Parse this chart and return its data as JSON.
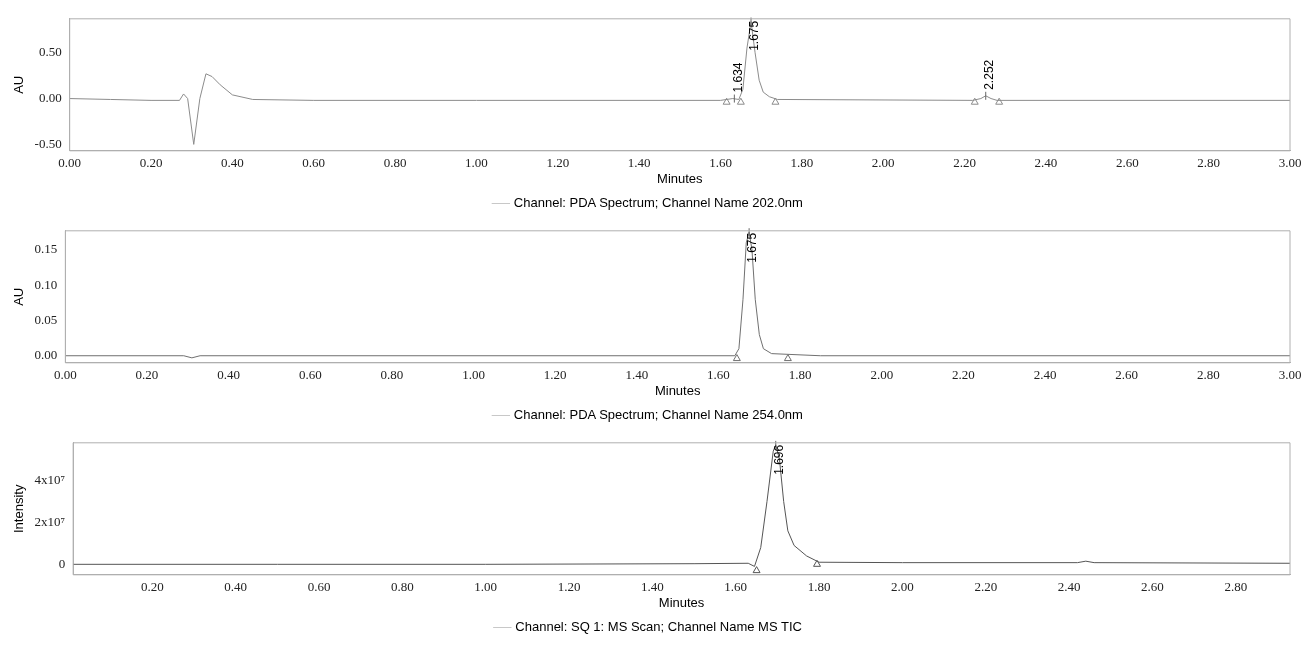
{
  "chart_data": [
    {
      "type": "line",
      "xlabel": "Minutes",
      "ylabel": "AU",
      "legend": "bottom",
      "xlim": [
        0,
        3
      ],
      "ylim": [
        -0.57,
        0.87
      ],
      "xticks": [
        {
          "value": 0,
          "label": "0.00"
        },
        {
          "value": 0.2,
          "label": "0.20"
        },
        {
          "value": 0.4,
          "label": "0.40"
        },
        {
          "value": 0.6,
          "label": "0.60"
        },
        {
          "value": 0.8,
          "label": "0.80"
        },
        {
          "value": 1,
          "label": "1.00"
        },
        {
          "value": 1.2,
          "label": "1.20"
        },
        {
          "value": 1.4,
          "label": "1.40"
        },
        {
          "value": 1.6,
          "label": "1.60"
        },
        {
          "value": 1.8,
          "label": "1.80"
        },
        {
          "value": 2,
          "label": "2.00"
        },
        {
          "value": 2.2,
          "label": "2.20"
        },
        {
          "value": 2.4,
          "label": "2.40"
        },
        {
          "value": 2.6,
          "label": "2.60"
        },
        {
          "value": 2.8,
          "label": "2.80"
        },
        {
          "value": 3,
          "label": "3.00"
        }
      ],
      "yticks": [
        {
          "value": -0.5,
          "label": "-0.50"
        },
        {
          "value": 0,
          "label": "0.00"
        },
        {
          "value": 0.5,
          "label": "0.50"
        }
      ],
      "series": [
        {
          "name": "Channel: PDA Spectrum; Channel Name 202.0nm",
          "color": "#8c8c8c",
          "x": [
            0,
            0.1,
            0.2,
            0.27,
            0.28,
            0.29,
            0.305,
            0.32,
            0.335,
            0.35,
            0.37,
            0.4,
            0.45,
            0.6,
            1.0,
            1.6,
            1.63,
            1.645,
            1.655,
            1.665,
            1.675,
            1.685,
            1.695,
            1.705,
            1.72,
            1.74,
            2.22,
            2.24,
            2.252,
            2.265,
            2.28,
            3.0
          ],
          "values": [
            0,
            -0.01,
            -0.02,
            -0.02,
            0.05,
            0,
            -0.5,
            0,
            0.27,
            0.24,
            0.15,
            0.04,
            -0.01,
            -0.02,
            -0.02,
            -0.02,
            0,
            -0.01,
            0.1,
            0.55,
            0.84,
            0.5,
            0.2,
            0.07,
            0.02,
            -0.01,
            -0.02,
            0,
            0.03,
            0,
            -0.02,
            -0.02
          ]
        },
        {
          "type": "scatter",
          "marker": "triangle",
          "color": "#8c8c8c",
          "x": [
            1.615,
            1.65,
            1.735,
            2.225,
            2.285
          ],
          "values": [
            -0.04,
            -0.04,
            -0.04,
            -0.04,
            -0.04
          ]
        }
      ],
      "annotations": [
        {
          "text": "1.634",
          "x": 1.634,
          "y": 0
        },
        {
          "text": "1.675",
          "x": 1.675,
          "y": 0.84
        },
        {
          "text": "2.252",
          "x": 2.252,
          "y": 0.03
        }
      ]
    },
    {
      "type": "line",
      "xlabel": "Minutes",
      "ylabel": "AU",
      "legend": "bottom",
      "xlim": [
        0,
        3
      ],
      "ylim": [
        -0.01,
        0.177
      ],
      "xticks": [
        {
          "value": 0,
          "label": "0.00"
        },
        {
          "value": 0.2,
          "label": "0.20"
        },
        {
          "value": 0.4,
          "label": "0.40"
        },
        {
          "value": 0.6,
          "label": "0.60"
        },
        {
          "value": 0.8,
          "label": "0.80"
        },
        {
          "value": 1,
          "label": "1.00"
        },
        {
          "value": 1.2,
          "label": "1.20"
        },
        {
          "value": 1.4,
          "label": "1.40"
        },
        {
          "value": 1.6,
          "label": "1.60"
        },
        {
          "value": 1.8,
          "label": "1.80"
        },
        {
          "value": 2,
          "label": "2.00"
        },
        {
          "value": 2.2,
          "label": "2.20"
        },
        {
          "value": 2.4,
          "label": "2.40"
        },
        {
          "value": 2.6,
          "label": "2.60"
        },
        {
          "value": 2.8,
          "label": "2.80"
        },
        {
          "value": 3,
          "label": "3.00"
        }
      ],
      "yticks": [
        {
          "value": 0,
          "label": "0.00"
        },
        {
          "value": 0.05,
          "label": "0.05"
        },
        {
          "value": 0.1,
          "label": "0.10"
        },
        {
          "value": 0.15,
          "label": "0.15"
        }
      ],
      "series": [
        {
          "name": "Channel: PDA Spectrum; Channel Name 254.0nm",
          "color": "#707070",
          "x": [
            0,
            0.29,
            0.31,
            0.33,
            1.64,
            1.65,
            1.66,
            1.668,
            1.675,
            1.682,
            1.69,
            1.7,
            1.71,
            1.73,
            1.77,
            1.85,
            3.0
          ],
          "values": [
            0,
            0,
            -0.003,
            0,
            0,
            0.01,
            0.08,
            0.16,
            0.175,
            0.15,
            0.08,
            0.03,
            0.01,
            0.003,
            0.002,
            0,
            0
          ]
        },
        {
          "type": "scatter",
          "marker": "triangle",
          "color": "#707070",
          "x": [
            1.645,
            1.77
          ],
          "values": [
            -0.004,
            -0.004
          ]
        }
      ],
      "annotations": [
        {
          "text": "1.675",
          "x": 1.675,
          "y": 0.175
        }
      ]
    },
    {
      "type": "line",
      "xlabel": "Minutes",
      "ylabel": "Intensity",
      "legend": "bottom",
      "xlim": [
        0.01,
        2.93
      ],
      "ylim": [
        -5000000,
        58000000
      ],
      "xticks": [
        {
          "value": 0.2,
          "label": "0.20"
        },
        {
          "value": 0.4,
          "label": "0.40"
        },
        {
          "value": 0.6,
          "label": "0.60"
        },
        {
          "value": 0.8,
          "label": "0.80"
        },
        {
          "value": 1,
          "label": "1.00"
        },
        {
          "value": 1.2,
          "label": "1.20"
        },
        {
          "value": 1.4,
          "label": "1.40"
        },
        {
          "value": 1.6,
          "label": "1.60"
        },
        {
          "value": 1.8,
          "label": "1.80"
        },
        {
          "value": 2,
          "label": "2.00"
        },
        {
          "value": 2.2,
          "label": "2.20"
        },
        {
          "value": 2.4,
          "label": "2.40"
        },
        {
          "value": 2.6,
          "label": "2.60"
        },
        {
          "value": 2.8,
          "label": "2.80"
        }
      ],
      "yticks": [
        0,
        {
          "value": 20000000,
          "label": "2x10⁷"
        },
        {
          "value": 40000000,
          "label": "4x10⁷"
        }
      ],
      "series": [
        {
          "name": "Channel: SQ 1: MS Scan; Channel Name MS TIC",
          "color": "#555555",
          "x": [
            0.01,
            0.5,
            1.0,
            1.5,
            1.63,
            1.645,
            1.66,
            1.675,
            1.69,
            1.696,
            1.705,
            1.715,
            1.725,
            1.74,
            1.77,
            1.8,
            2.0,
            2.42,
            2.44,
            2.46,
            2.93
          ],
          "values": [
            0,
            0,
            0,
            300000,
            500000,
            -1000000,
            8000000,
            30000000,
            54000000,
            57000000,
            50000000,
            30000000,
            16000000,
            9000000,
            4000000,
            1000000,
            800000,
            800000,
            1500000,
            800000,
            500000
          ]
        },
        {
          "type": "scatter",
          "marker": "triangle",
          "color": "#555555",
          "x": [
            1.65,
            1.795
          ],
          "values": [
            -3000000,
            0
          ]
        }
      ],
      "annotations": [
        {
          "text": "1.696",
          "x": 1.696,
          "y": 57000000
        }
      ]
    }
  ]
}
